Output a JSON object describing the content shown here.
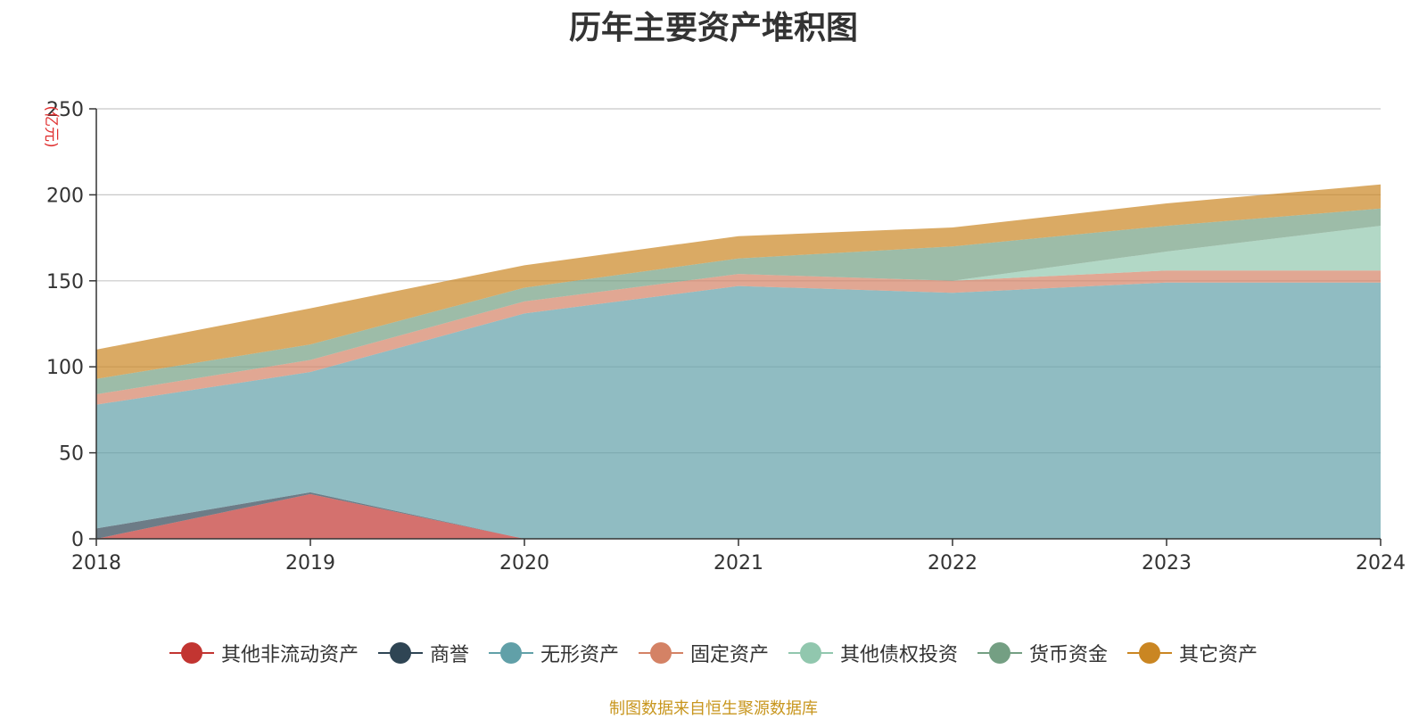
{
  "chart_data": {
    "type": "area",
    "stacked": true,
    "title": "历年主要资产堆积图",
    "unit_label": "(亿元)",
    "x": [
      "2018",
      "2019",
      "2020",
      "2021",
      "2022",
      "2023",
      "2024"
    ],
    "ylim": [
      0,
      250
    ],
    "yticks": [
      "0",
      "50",
      "100",
      "150",
      "200",
      "250"
    ],
    "grid": true,
    "legend_position": "bottom",
    "series": [
      {
        "name": "其他非流动资产",
        "color": "#c23531",
        "values": [
          0,
          26,
          0,
          0,
          0,
          0,
          0
        ]
      },
      {
        "name": "商誉",
        "color": "#2f4554",
        "values": [
          6,
          1,
          0,
          0,
          0,
          0,
          0
        ]
      },
      {
        "name": "无形资产",
        "color": "#61a0a8",
        "values": [
          72,
          70,
          131,
          147,
          143,
          149,
          149
        ]
      },
      {
        "name": "固定资产",
        "color": "#d48265",
        "values": [
          6,
          7,
          7,
          7,
          7,
          7,
          7
        ]
      },
      {
        "name": "其他债权投资",
        "color": "#91c7ae",
        "values": [
          0,
          0,
          0,
          0,
          0,
          11,
          26
        ]
      },
      {
        "name": "货币资金",
        "color": "#749f83",
        "values": [
          9,
          9,
          8,
          9,
          20,
          15,
          10
        ]
      },
      {
        "name": "其它资产",
        "color": "#ca8622",
        "values": [
          17,
          21,
          13,
          13,
          11,
          13,
          14
        ]
      }
    ]
  },
  "footer": {
    "source": "制图数据来自恒生聚源数据库"
  }
}
